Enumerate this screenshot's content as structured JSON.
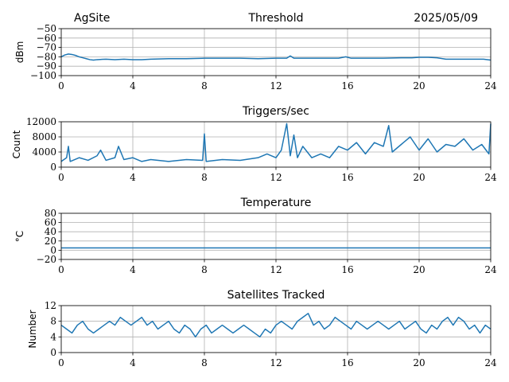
{
  "header": {
    "site": "AgSite",
    "date": "2025/05/09"
  },
  "colors": {
    "series": "#1f77b4",
    "grid": "#b0b0b0"
  },
  "chart_data": [
    {
      "type": "line",
      "title": "Threshold",
      "ylabel": "dBm",
      "xlabel": "",
      "xlim": [
        0,
        24
      ],
      "ylim": [
        -100,
        -50
      ],
      "xticks": [
        0,
        4,
        8,
        12,
        16,
        20,
        24
      ],
      "yticks": [
        -100,
        -90,
        -80,
        -70,
        -60,
        -50
      ],
      "ytick_labels": [
        "−100",
        "−90",
        "−80",
        "−70",
        "−60",
        "−50"
      ],
      "grid": true,
      "series": [
        {
          "x": [
            0,
            0.2,
            0.4,
            0.6,
            0.8,
            1.0,
            1.2,
            1.4,
            1.6,
            1.8,
            2.0,
            2.5,
            3.0,
            3.5,
            4.0,
            4.5,
            5.0,
            6.0,
            7.0,
            8.0,
            9.0,
            10.0,
            11.0,
            12.0,
            12.6,
            12.8,
            13.0,
            14.0,
            15.0,
            15.5,
            15.9,
            16.2,
            17.0,
            18.0,
            19.0,
            19.6,
            20.0,
            20.5,
            21.0,
            21.5,
            22.0,
            23.0,
            23.6,
            24.0
          ],
          "y": [
            -80,
            -78,
            -77,
            -77.5,
            -78.5,
            -80,
            -81,
            -82,
            -83,
            -83.5,
            -83,
            -82.5,
            -83,
            -82.5,
            -83,
            -83,
            -82.5,
            -82,
            -82,
            -81.5,
            -81.5,
            -81.5,
            -82,
            -81.5,
            -81.5,
            -79,
            -81.5,
            -81.5,
            -81.5,
            -81.5,
            -80,
            -81.5,
            -81.5,
            -81.5,
            -81,
            -81,
            -80.5,
            -80.5,
            -81,
            -82.5,
            -82.5,
            -82.5,
            -82.5,
            -83.5
          ]
        }
      ]
    },
    {
      "type": "line",
      "title": "Triggers/sec",
      "ylabel": "Count",
      "xlabel": "",
      "xlim": [
        0,
        24
      ],
      "ylim": [
        0,
        12000
      ],
      "xticks": [
        0,
        4,
        8,
        12,
        16,
        20,
        24
      ],
      "yticks": [
        0,
        4000,
        8000,
        12000
      ],
      "ytick_labels": [
        "0",
        "4000",
        "8000",
        "12000"
      ],
      "grid": true,
      "series": [
        {
          "x": [
            0,
            0.3,
            0.4,
            0.5,
            1.0,
            1.5,
            2.0,
            2.2,
            2.5,
            3.0,
            3.2,
            3.5,
            4.0,
            4.5,
            5.0,
            6.0,
            7.0,
            7.9,
            8.0,
            8.1,
            9.0,
            10.0,
            11.0,
            11.5,
            12.0,
            12.3,
            12.6,
            12.8,
            13.0,
            13.2,
            13.5,
            14.0,
            14.5,
            15.0,
            15.5,
            16.0,
            16.5,
            17.0,
            17.5,
            18.0,
            18.3,
            18.5,
            19.0,
            19.5,
            20.0,
            20.5,
            21.0,
            21.5,
            22.0,
            22.5,
            23.0,
            23.5,
            23.9,
            24.0
          ],
          "y": [
            1500,
            2500,
            5500,
            1500,
            2500,
            1800,
            3000,
            4500,
            1800,
            2500,
            5500,
            2000,
            2500,
            1500,
            2000,
            1500,
            2000,
            1800,
            8800,
            1500,
            2000,
            1800,
            2500,
            3500,
            2500,
            4500,
            11500,
            3000,
            8500,
            2500,
            5500,
            2500,
            3500,
            2500,
            5500,
            4500,
            6500,
            3500,
            6500,
            5500,
            11000,
            4000,
            6000,
            8000,
            4500,
            7500,
            4000,
            6000,
            5500,
            7500,
            4500,
            6000,
            3500,
            11500
          ]
        }
      ]
    },
    {
      "type": "line",
      "title": "Temperature",
      "ylabel": "°C",
      "xlabel": "",
      "xlim": [
        0,
        24
      ],
      "ylim": [
        -20,
        80
      ],
      "xticks": [
        0,
        4,
        8,
        12,
        16,
        20,
        24
      ],
      "yticks": [
        -20,
        0,
        20,
        40,
        60,
        80
      ],
      "ytick_labels": [
        "−20",
        "0",
        "20",
        "40",
        "60",
        "80"
      ],
      "grid": true,
      "series": [
        {
          "x": [
            0,
            24
          ],
          "y": [
            5,
            5
          ]
        }
      ]
    },
    {
      "type": "line",
      "title": "Satellites Tracked",
      "ylabel": "Number",
      "xlabel": "",
      "xlim": [
        0,
        24
      ],
      "ylim": [
        0,
        12
      ],
      "xticks": [
        0,
        4,
        8,
        12,
        16,
        20,
        24
      ],
      "yticks": [
        0,
        4,
        8,
        12
      ],
      "ytick_labels": [
        "0",
        "4",
        "8",
        "12"
      ],
      "grid": true,
      "series": [
        {
          "x": [
            0,
            0.3,
            0.6,
            0.9,
            1.2,
            1.5,
            1.8,
            2.1,
            2.4,
            2.7,
            3.0,
            3.3,
            3.6,
            3.9,
            4.2,
            4.5,
            4.8,
            5.1,
            5.4,
            5.7,
            6.0,
            6.3,
            6.6,
            6.9,
            7.2,
            7.5,
            7.8,
            8.1,
            8.4,
            8.7,
            9.0,
            9.3,
            9.6,
            9.9,
            10.2,
            10.5,
            10.8,
            11.1,
            11.4,
            11.7,
            12.0,
            12.3,
            12.6,
            12.9,
            13.2,
            13.5,
            13.8,
            14.1,
            14.4,
            14.7,
            15.0,
            15.3,
            15.6,
            15.9,
            16.2,
            16.5,
            16.8,
            17.1,
            17.4,
            17.7,
            18.0,
            18.3,
            18.6,
            18.9,
            19.2,
            19.5,
            19.8,
            20.1,
            20.4,
            20.7,
            21.0,
            21.3,
            21.6,
            21.9,
            22.2,
            22.5,
            22.8,
            23.1,
            23.4,
            23.7,
            24.0
          ],
          "y": [
            7,
            6,
            5,
            7,
            8,
            6,
            5,
            6,
            7,
            8,
            7,
            9,
            8,
            7,
            8,
            9,
            7,
            8,
            6,
            7,
            8,
            6,
            5,
            7,
            6,
            4,
            6,
            7,
            5,
            6,
            7,
            6,
            5,
            6,
            7,
            6,
            5,
            4,
            6,
            5,
            7,
            8,
            7,
            6,
            8,
            9,
            10,
            7,
            8,
            6,
            7,
            9,
            8,
            7,
            6,
            8,
            7,
            6,
            7,
            8,
            7,
            6,
            7,
            8,
            6,
            7,
            8,
            6,
            5,
            7,
            6,
            8,
            9,
            7,
            9,
            8,
            6,
            7,
            5,
            7,
            6
          ]
        }
      ]
    }
  ]
}
